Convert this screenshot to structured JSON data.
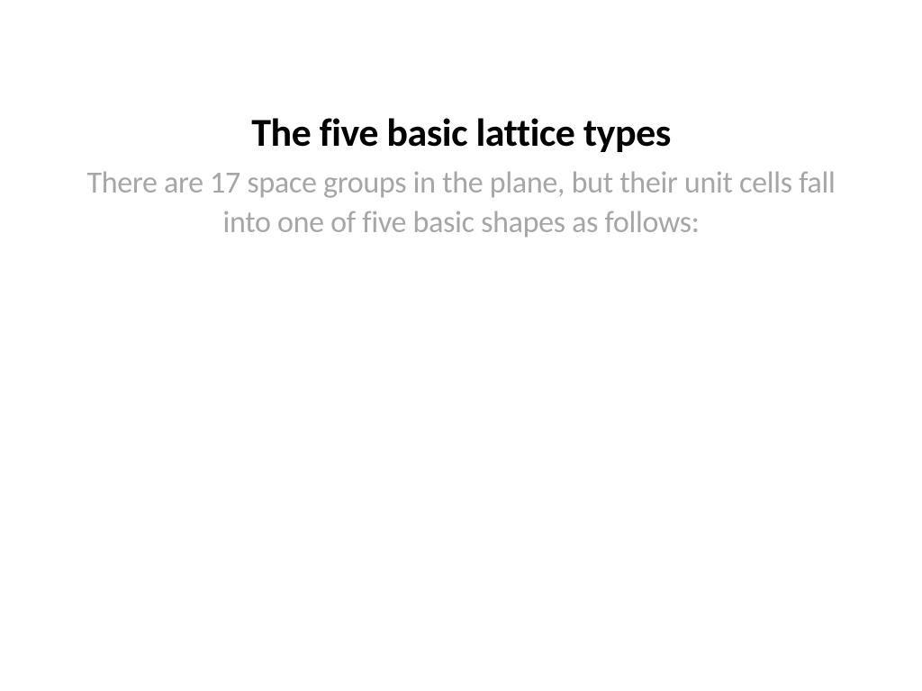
{
  "slide": {
    "title": "The five basic lattice types",
    "subtitle": "There are 17 space groups in the plane, but their unit cells fall into one of five basic shapes as follows:",
    "title_color": "#000000",
    "subtitle_color": "#a6a6a6",
    "background_color": "#ffffff",
    "title_fontsize": 44,
    "subtitle_fontsize": 34,
    "title_fontweight": 700,
    "subtitle_fontweight": 400
  }
}
